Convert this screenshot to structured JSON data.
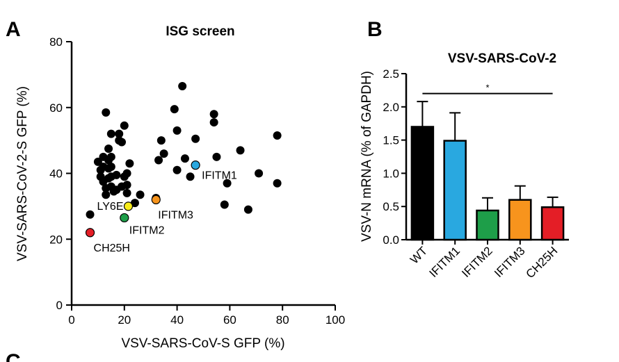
{
  "chart_data": [
    {
      "type": "scatter",
      "panel": "A",
      "title": "ISG screen",
      "xlabel": "VSV-SARS-CoV-S GFP (%)",
      "ylabel": "VSV-SARS-CoV-2-S GFP (%)",
      "xlim": [
        0,
        100
      ],
      "ylim": [
        0,
        80
      ],
      "xticks": [
        0,
        20,
        40,
        60,
        80,
        100
      ],
      "yticks": [
        0,
        20,
        40,
        60,
        80
      ],
      "points": [
        [
          7,
          27.5
        ],
        [
          10,
          43.5
        ],
        [
          11,
          41
        ],
        [
          11,
          39
        ],
        [
          12,
          45
        ],
        [
          12,
          42
        ],
        [
          12,
          37.5
        ],
        [
          13,
          58.5
        ],
        [
          13,
          35.5
        ],
        [
          13,
          33.5
        ],
        [
          14,
          47.5
        ],
        [
          14,
          44
        ],
        [
          14,
          41.5
        ],
        [
          14,
          38.5
        ],
        [
          15,
          52
        ],
        [
          15,
          45
        ],
        [
          15,
          42
        ],
        [
          15,
          39
        ],
        [
          15,
          36
        ],
        [
          16,
          34.5
        ],
        [
          17,
          39.5
        ],
        [
          17,
          35
        ],
        [
          18,
          52
        ],
        [
          18,
          50
        ],
        [
          19,
          49.5
        ],
        [
          19,
          36
        ],
        [
          20,
          54.5
        ],
        [
          20,
          39
        ],
        [
          21,
          36.5
        ],
        [
          21,
          34
        ],
        [
          21,
          40
        ],
        [
          22,
          43
        ],
        [
          24,
          31
        ],
        [
          26,
          33.5
        ],
        [
          32,
          32.5
        ],
        [
          33,
          44
        ],
        [
          34,
          50
        ],
        [
          35,
          46
        ],
        [
          42,
          66.5
        ],
        [
          39,
          59.5
        ],
        [
          40,
          53
        ],
        [
          40,
          41
        ],
        [
          43,
          44.5
        ],
        [
          45,
          39
        ],
        [
          47,
          50.5
        ],
        [
          54,
          58
        ],
        [
          54,
          55.5
        ],
        [
          55,
          45
        ],
        [
          59,
          37
        ],
        [
          58,
          30.5
        ],
        [
          64,
          47
        ],
        [
          67,
          29
        ],
        [
          71,
          40
        ],
        [
          78,
          51.5
        ],
        [
          78,
          37
        ]
      ],
      "highlighted": [
        {
          "label": "IFITM1",
          "x": 47,
          "y": 42.5,
          "color": "#29a8e0"
        },
        {
          "label": "LY6E",
          "x": 21.5,
          "y": 30,
          "color": "#f7ec1b"
        },
        {
          "label": "IFITM3",
          "x": 32,
          "y": 32,
          "color": "#f7941d"
        },
        {
          "label": "IFITM2",
          "x": 20,
          "y": 26.5,
          "color": "#1e9e49"
        },
        {
          "label": "CH25H",
          "x": 7,
          "y": 22,
          "color": "#e41e26"
        }
      ]
    },
    {
      "type": "bar",
      "panel": "B",
      "title": "VSV-SARS-CoV-2",
      "xlabel": "",
      "ylabel": "VSV-N mRNA (% of GAPDH)",
      "ylim": [
        0,
        2.5
      ],
      "yticks": [
        "0.0",
        "0.5",
        "1.0",
        "1.5",
        "2.0",
        "2.5"
      ],
      "categories": [
        "WT",
        "IFITM1",
        "IFITM2",
        "IFITM3",
        "CH25H"
      ],
      "values": [
        1.7,
        1.49,
        0.44,
        0.6,
        0.49
      ],
      "errors": [
        0.38,
        0.42,
        0.19,
        0.21,
        0.15
      ],
      "colors": [
        "#000000",
        "#29a8e0",
        "#1e9e49",
        "#f7941d",
        "#e41e26"
      ],
      "significance": {
        "from": "WT",
        "to": "CH25H",
        "label": "*"
      }
    }
  ],
  "panel_c_letter": "C"
}
